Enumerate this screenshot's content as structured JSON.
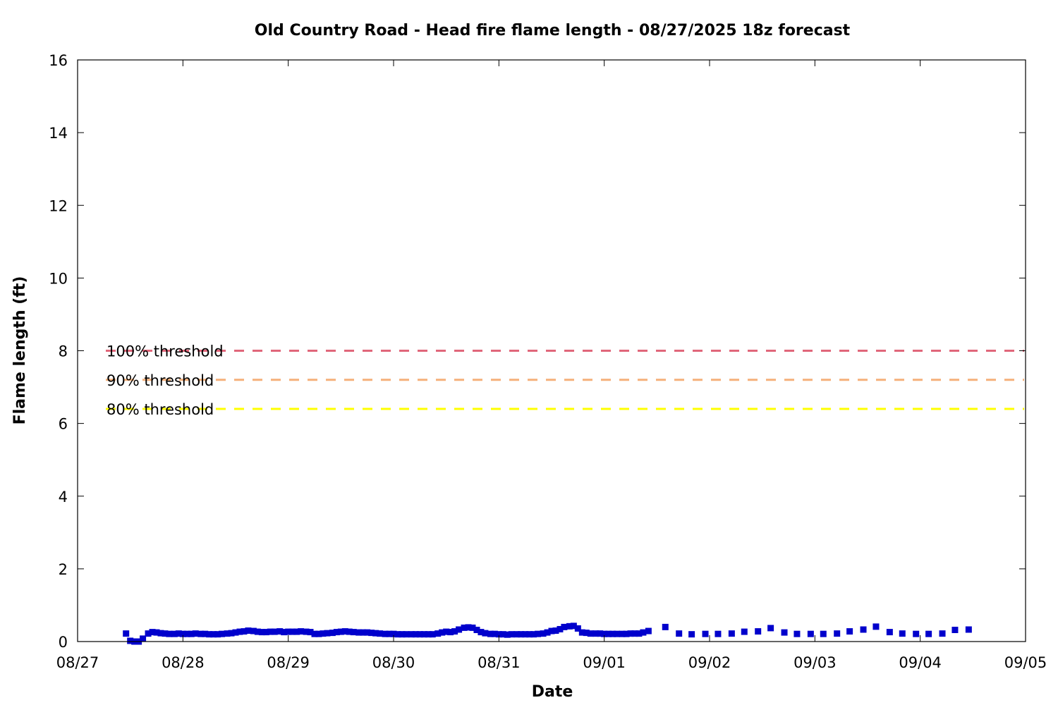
{
  "chart_data": {
    "type": "scatter",
    "title": "Old Country Road - Head fire flame length - 08/27/2025 18z forecast",
    "xlabel": "Date",
    "ylabel": "Flame length (ft)",
    "xlim": [
      0,
      9
    ],
    "ylim": [
      0,
      16
    ],
    "x_tick_labels": [
      "08/27",
      "08/28",
      "08/29",
      "08/30",
      "08/31",
      "09/01",
      "09/02",
      "09/03",
      "09/04",
      "09/05"
    ],
    "y_tick_values": [
      0,
      2,
      4,
      6,
      8,
      10,
      12,
      14,
      16
    ],
    "grid": false,
    "thresholds": [
      {
        "label": "100% threshold",
        "value": 8.0,
        "color": "#e0667a"
      },
      {
        "label": "90% threshold",
        "value": 7.2,
        "color": "#f5b07a"
      },
      {
        "label": "80% threshold",
        "value": 6.4,
        "color": "#ffff00"
      }
    ],
    "series": [
      {
        "color": "#0000cc",
        "marker": "square",
        "points": [
          [
            0.46,
            0.22
          ],
          [
            0.5,
            0.02
          ],
          [
            0.54,
            0.0
          ],
          [
            0.58,
            0.0
          ],
          [
            0.62,
            0.08
          ],
          [
            0.67,
            0.22
          ],
          [
            0.71,
            0.26
          ],
          [
            0.75,
            0.25
          ],
          [
            0.79,
            0.23
          ],
          [
            0.83,
            0.22
          ],
          [
            0.87,
            0.21
          ],
          [
            0.92,
            0.21
          ],
          [
            0.96,
            0.22
          ],
          [
            1.0,
            0.21
          ],
          [
            1.04,
            0.21
          ],
          [
            1.08,
            0.21
          ],
          [
            1.12,
            0.22
          ],
          [
            1.17,
            0.21
          ],
          [
            1.21,
            0.21
          ],
          [
            1.25,
            0.2
          ],
          [
            1.29,
            0.2
          ],
          [
            1.33,
            0.2
          ],
          [
            1.37,
            0.21
          ],
          [
            1.42,
            0.22
          ],
          [
            1.46,
            0.23
          ],
          [
            1.5,
            0.25
          ],
          [
            1.54,
            0.27
          ],
          [
            1.58,
            0.28
          ],
          [
            1.62,
            0.3
          ],
          [
            1.67,
            0.29
          ],
          [
            1.71,
            0.27
          ],
          [
            1.75,
            0.26
          ],
          [
            1.79,
            0.26
          ],
          [
            1.83,
            0.27
          ],
          [
            1.87,
            0.27
          ],
          [
            1.92,
            0.28
          ],
          [
            1.96,
            0.26
          ],
          [
            2.0,
            0.27
          ],
          [
            2.04,
            0.27
          ],
          [
            2.08,
            0.27
          ],
          [
            2.12,
            0.28
          ],
          [
            2.17,
            0.27
          ],
          [
            2.21,
            0.26
          ],
          [
            2.25,
            0.21
          ],
          [
            2.29,
            0.21
          ],
          [
            2.33,
            0.22
          ],
          [
            2.37,
            0.23
          ],
          [
            2.42,
            0.24
          ],
          [
            2.46,
            0.26
          ],
          [
            2.5,
            0.27
          ],
          [
            2.54,
            0.28
          ],
          [
            2.58,
            0.27
          ],
          [
            2.62,
            0.26
          ],
          [
            2.67,
            0.25
          ],
          [
            2.71,
            0.25
          ],
          [
            2.75,
            0.25
          ],
          [
            2.79,
            0.24
          ],
          [
            2.83,
            0.23
          ],
          [
            2.87,
            0.22
          ],
          [
            2.92,
            0.21
          ],
          [
            2.96,
            0.21
          ],
          [
            3.0,
            0.21
          ],
          [
            3.04,
            0.2
          ],
          [
            3.08,
            0.2
          ],
          [
            3.12,
            0.2
          ],
          [
            3.17,
            0.2
          ],
          [
            3.21,
            0.2
          ],
          [
            3.25,
            0.2
          ],
          [
            3.29,
            0.2
          ],
          [
            3.33,
            0.2
          ],
          [
            3.37,
            0.2
          ],
          [
            3.42,
            0.22
          ],
          [
            3.46,
            0.25
          ],
          [
            3.5,
            0.27
          ],
          [
            3.54,
            0.26
          ],
          [
            3.58,
            0.28
          ],
          [
            3.62,
            0.33
          ],
          [
            3.67,
            0.38
          ],
          [
            3.71,
            0.39
          ],
          [
            3.75,
            0.38
          ],
          [
            3.79,
            0.32
          ],
          [
            3.83,
            0.26
          ],
          [
            3.87,
            0.23
          ],
          [
            3.92,
            0.21
          ],
          [
            3.96,
            0.21
          ],
          [
            4.0,
            0.2
          ],
          [
            4.04,
            0.2
          ],
          [
            4.08,
            0.19
          ],
          [
            4.12,
            0.2
          ],
          [
            4.17,
            0.2
          ],
          [
            4.21,
            0.2
          ],
          [
            4.25,
            0.2
          ],
          [
            4.29,
            0.2
          ],
          [
            4.33,
            0.2
          ],
          [
            4.37,
            0.21
          ],
          [
            4.42,
            0.22
          ],
          [
            4.46,
            0.25
          ],
          [
            4.5,
            0.29
          ],
          [
            4.54,
            0.3
          ],
          [
            4.58,
            0.34
          ],
          [
            4.62,
            0.4
          ],
          [
            4.67,
            0.42
          ],
          [
            4.71,
            0.43
          ],
          [
            4.75,
            0.36
          ],
          [
            4.79,
            0.25
          ],
          [
            4.83,
            0.24
          ],
          [
            4.87,
            0.22
          ],
          [
            4.92,
            0.22
          ],
          [
            4.96,
            0.22
          ],
          [
            5.0,
            0.21
          ],
          [
            5.04,
            0.21
          ],
          [
            5.08,
            0.21
          ],
          [
            5.12,
            0.21
          ],
          [
            5.17,
            0.21
          ],
          [
            5.21,
            0.21
          ],
          [
            5.25,
            0.22
          ],
          [
            5.29,
            0.22
          ],
          [
            5.33,
            0.22
          ],
          [
            5.37,
            0.25
          ],
          [
            5.42,
            0.29
          ],
          [
            5.58,
            0.4
          ],
          [
            5.71,
            0.22
          ],
          [
            5.83,
            0.2
          ],
          [
            5.96,
            0.21
          ],
          [
            6.08,
            0.21
          ],
          [
            6.21,
            0.22
          ],
          [
            6.33,
            0.27
          ],
          [
            6.46,
            0.28
          ],
          [
            6.58,
            0.37
          ],
          [
            6.71,
            0.25
          ],
          [
            6.83,
            0.21
          ],
          [
            6.96,
            0.21
          ],
          [
            7.08,
            0.21
          ],
          [
            7.21,
            0.22
          ],
          [
            7.33,
            0.28
          ],
          [
            7.46,
            0.33
          ],
          [
            7.58,
            0.41
          ],
          [
            7.71,
            0.26
          ],
          [
            7.83,
            0.22
          ],
          [
            7.96,
            0.21
          ],
          [
            8.08,
            0.21
          ],
          [
            8.21,
            0.22
          ],
          [
            8.33,
            0.32
          ],
          [
            8.46,
            0.33
          ]
        ]
      }
    ]
  }
}
